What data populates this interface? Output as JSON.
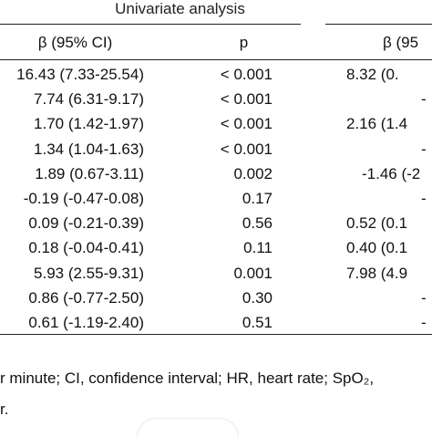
{
  "table": {
    "group_header": "Univariate analysis",
    "columns": [
      "β (95% CI)",
      "p",
      "β (95"
    ],
    "rows": [
      {
        "beta": "16.43 (7.33-25.54)",
        "p": "< 0.001",
        "beta2": "8.32 (0."
      },
      {
        "beta": "7.74 (6.31-9.17)",
        "p": "< 0.001",
        "beta2": "-"
      },
      {
        "beta": "1.70 (1.42-1.97)",
        "p": "< 0.001",
        "beta2": "2.16 (1.4"
      },
      {
        "beta": "1.34 (1.04-1.63)",
        "p": "< 0.001",
        "beta2": "-"
      },
      {
        "beta": "1.89 (0.67-3.11)",
        "p": "0.002",
        "beta2": "-1.46 (-2"
      },
      {
        "beta": "-0.19 (-0.47-0.08)",
        "p": "0.17",
        "beta2": "-"
      },
      {
        "beta": "0.09 (-0.21-0.39)",
        "p": "0.56",
        "beta2": "0.52 (0.1"
      },
      {
        "beta": "0.18 (-0.04-0.41)",
        "p": "0.11",
        "beta2": "0.40 (0.1"
      },
      {
        "beta": "5.93 (2.55-9.31)",
        "p": "0.001",
        "beta2": "7.98 (4.9"
      },
      {
        "beta": "0.86 (-0.77-2.50)",
        "p": "0.30",
        "beta2": "-"
      },
      {
        "beta": "0.61 (-1.19-2.40)",
        "p": "0.51",
        "beta2": "-"
      }
    ]
  },
  "footnote": {
    "line1": "r minute; CI, confidence interval; HR, heart rate; SpO₂,",
    "line2": "r."
  }
}
